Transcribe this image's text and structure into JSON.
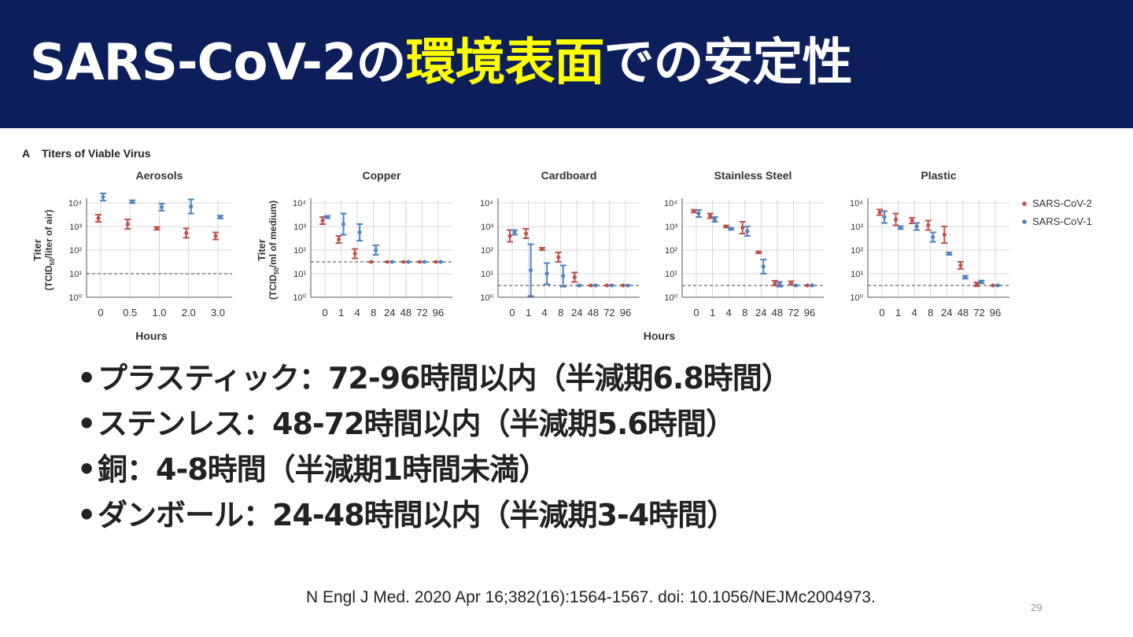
{
  "slide": {
    "title_prefix": "SARS-CoV-2の",
    "title_highlight": "環境表面",
    "title_suffix": "での安定性",
    "bullets": [
      "プラスティック：72-96時間以内（半減期6.8時間）",
      "ステンレス：48-72時間以内（半減期5.6時間）",
      "銅：4-8時間（半減期1時間未満）",
      "ダンボール：24-48時間以内（半減期3-4時間）"
    ],
    "citation": "N Engl J Med. 2020 Apr 16;382(16):1564-1567. doi: 10.1056/NEJMc2004973.",
    "page_number": "29"
  },
  "colors": {
    "header_bg": "#0c1f5b",
    "highlight": "#ffff00",
    "sars_cov_2": "#c0504d",
    "sars_cov_1": "#4f81bd"
  },
  "chart_data": {
    "type": "scatter",
    "figure_label": "A",
    "figure_title": "Titers of Viable Virus",
    "y_scale": "log",
    "grid": true,
    "legend_position": "right",
    "legend": [
      "SARS-CoV-2",
      "SARS-CoV-1"
    ],
    "y_tick_labels": [
      "10⁰",
      "10¹",
      "10²",
      "10³",
      "10⁴"
    ],
    "shared_xlabel": "Hours",
    "panels": [
      {
        "title": "Aerosols",
        "ylabel": "Titer",
        "ylabel_sub": "(TCID",
        "ylabel_sub2": "50",
        "ylabel_sub3": "/liter of air)",
        "xlabel": "Hours",
        "x": [
          "0",
          "0.5",
          "1.0",
          "2.0",
          "3.0"
        ],
        "detection_limit": 1.0,
        "series": [
          {
            "name": "SARS-CoV-2",
            "values": [
              3.35,
              3.1,
              2.92,
              2.72,
              2.6
            ],
            "err_low": [
              0.15,
              0.2,
              0.06,
              0.2,
              0.15
            ],
            "err_high": [
              0.15,
              0.2,
              0.06,
              0.2,
              0.15
            ]
          },
          {
            "name": "SARS-CoV-1",
            "values": [
              4.25,
              4.05,
              3.82,
              3.85,
              3.4
            ],
            "err_low": [
              0.15,
              0.06,
              0.15,
              0.3,
              0.06
            ],
            "err_high": [
              0.15,
              0.06,
              0.15,
              0.3,
              0.06
            ]
          }
        ]
      },
      {
        "title": "Copper",
        "ylabel": "Titer",
        "ylabel_sub": "(TCID",
        "ylabel_sub2": "50",
        "ylabel_sub3": "/ml of medium)",
        "x": [
          "0",
          "1",
          "4",
          "8",
          "24",
          "48",
          "72",
          "96"
        ],
        "detection_limit": 1.5,
        "series": [
          {
            "name": "SARS-CoV-2",
            "values": [
              3.25,
              2.45,
              1.85,
              1.5,
              1.5,
              1.5,
              1.5,
              1.5
            ],
            "err_low": [
              0.15,
              0.15,
              0.2,
              0,
              0,
              0,
              0,
              0
            ],
            "err_high": [
              0.15,
              0.15,
              0.2,
              0,
              0,
              0,
              0,
              0
            ]
          },
          {
            "name": "SARS-CoV-1",
            "values": [
              3.4,
              3.1,
              2.75,
              2.0,
              1.5,
              1.5,
              1.5,
              1.5
            ],
            "err_low": [
              0.05,
              0.45,
              0.35,
              0.2,
              0,
              0,
              0,
              0
            ],
            "err_high": [
              0.05,
              0.45,
              0.35,
              0.2,
              0,
              0,
              0,
              0
            ]
          }
        ]
      },
      {
        "title": "Cardboard",
        "x": [
          "0",
          "1",
          "4",
          "8",
          "24",
          "48",
          "72",
          "96"
        ],
        "detection_limit": 0.5,
        "series": [
          {
            "name": "SARS-CoV-2",
            "values": [
              2.6,
              2.7,
              2.05,
              1.7,
              0.85,
              0.5,
              0.5,
              0.5
            ],
            "err_low": [
              0.25,
              0.2,
              0.05,
              0.2,
              0.2,
              0,
              0,
              0
            ],
            "err_high": [
              0.25,
              0.2,
              0.05,
              0.2,
              0.2,
              0,
              0,
              0
            ]
          },
          {
            "name": "SARS-CoV-1",
            "values": [
              2.75,
              1.15,
              1.0,
              0.9,
              0.5,
              0.5,
              0.5,
              0.5
            ],
            "err_low": [
              0.1,
              1.1,
              0.45,
              0.45,
              0,
              0,
              0,
              0
            ],
            "err_high": [
              0.1,
              1.1,
              0.45,
              0.45,
              0,
              0,
              0,
              0
            ]
          }
        ]
      },
      {
        "title": "Stainless Steel",
        "x": [
          "0",
          "1",
          "4",
          "8",
          "24",
          "48",
          "72",
          "96"
        ],
        "detection_limit": 0.5,
        "series": [
          {
            "name": "SARS-CoV-2",
            "values": [
              3.65,
              3.45,
              3.0,
              2.95,
              1.9,
              0.6,
              0.6,
              0.5
            ],
            "err_low": [
              0.06,
              0.1,
              0.04,
              0.25,
              0.04,
              0.1,
              0.08,
              0
            ],
            "err_high": [
              0.06,
              0.1,
              0.04,
              0.25,
              0.04,
              0.1,
              0.08,
              0
            ]
          },
          {
            "name": "SARS-CoV-1",
            "values": [
              3.55,
              3.3,
              2.9,
              2.8,
              1.3,
              0.55,
              0.5,
              0.5
            ],
            "err_low": [
              0.15,
              0.1,
              0.04,
              0.2,
              0.3,
              0.1,
              0,
              0
            ],
            "err_high": [
              0.15,
              0.1,
              0.04,
              0.2,
              0.3,
              0.1,
              0,
              0
            ]
          }
        ]
      },
      {
        "title": "Plastic",
        "x": [
          "0",
          "1",
          "4",
          "8",
          "24",
          "48",
          "72",
          "96"
        ],
        "detection_limit": 0.5,
        "series": [
          {
            "name": "SARS-CoV-2",
            "values": [
              3.6,
              3.3,
              3.25,
              3.05,
              2.65,
              1.35,
              0.55,
              0.5
            ],
            "err_low": [
              0.12,
              0.25,
              0.12,
              0.2,
              0.35,
              0.15,
              0.08,
              0
            ],
            "err_high": [
              0.12,
              0.25,
              0.12,
              0.2,
              0.35,
              0.15,
              0.08,
              0
            ]
          },
          {
            "name": "SARS-CoV-1",
            "values": [
              3.4,
              2.95,
              3.0,
              2.55,
              1.85,
              0.85,
              0.65,
              0.5
            ],
            "err_low": [
              0.25,
              0.06,
              0.15,
              0.2,
              0.05,
              0.06,
              0.06,
              0
            ],
            "err_high": [
              0.25,
              0.06,
              0.15,
              0.2,
              0.05,
              0.06,
              0.06,
              0
            ]
          }
        ]
      }
    ]
  }
}
